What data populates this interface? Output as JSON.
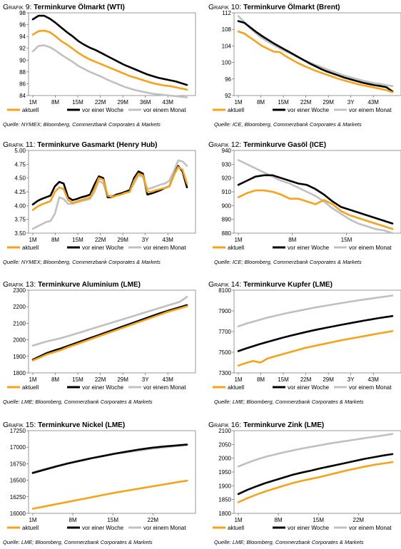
{
  "legend": [
    "aktuell",
    "vor einer Woche",
    "vor einem Monat"
  ],
  "colors": {
    "aktuell": "#F7A21B",
    "woche": "#000000",
    "monat": "#C0C0C0"
  },
  "panels": [
    {
      "label": "Grafik 9:",
      "title": "Terminkurve Ölmarkt (WTI)",
      "source": "Quelle: NYMEX; Bloomberg, Commerzbank Corporates & Markets",
      "chart_data": {
        "type": "line",
        "ylim": [
          84,
          98
        ],
        "yticks": [
          "84",
          "86",
          "88",
          "90",
          "92",
          "94",
          "96",
          "98"
        ],
        "xticks": [
          "1M",
          "8M",
          "15M",
          "22M",
          "29M",
          "36M",
          "43M"
        ],
        "series": [
          {
            "name": "aktuell",
            "values": [
              94.3,
              94.9,
              95.0,
              94.7,
              94.0,
              93.2,
              92.6,
              91.9,
              91.2,
              90.6,
              90.1,
              89.7,
              89.3,
              88.9,
              88.5,
              88.1,
              87.7,
              87.3,
              87.0,
              86.7,
              86.4,
              86.1,
              85.9,
              85.7,
              85.6,
              85.4,
              85.2,
              85.0
            ]
          },
          {
            "name": "vor einer Woche",
            "values": [
              96.9,
              97.5,
              97.5,
              97.0,
              96.3,
              95.5,
              94.7,
              94.0,
              93.2,
              92.6,
              92.1,
              91.7,
              91.2,
              90.7,
              90.2,
              89.7,
              89.2,
              88.8,
              88.4,
              88.0,
              87.6,
              87.3,
              87.0,
              86.8,
              86.6,
              86.4,
              86.1,
              85.8
            ]
          },
          {
            "name": "vor einem Monat",
            "values": [
              91.5,
              92.4,
              92.5,
              92.2,
              91.6,
              90.9,
              90.3,
              89.7,
              89.0,
              88.5,
              88.0,
              87.6,
              87.2,
              86.7,
              86.3,
              85.9,
              85.5,
              85.2,
              84.9,
              84.7,
              84.5,
              84.3,
              84.2,
              84.1,
              84.0,
              83.9,
              83.8,
              83.7
            ]
          }
        ]
      }
    },
    {
      "label": "Grafik 10:",
      "title": "Terminkurve Ölmarkt (Brent)",
      "source": "Quelle: ICE, Bloomberg, Commerzbank Corporates & Markets",
      "chart_data": {
        "type": "line",
        "ylim": [
          92,
          112
        ],
        "yticks": [
          "92",
          "96",
          "100",
          "104",
          "108",
          "112"
        ],
        "xticks": [
          "1M",
          "8M",
          "15M",
          "22M",
          "29M",
          "3Y",
          "43M"
        ],
        "series": [
          {
            "name": "aktuell",
            "values": [
              107.5,
              107.0,
              106.0,
              105.0,
              104.0,
              103.3,
              102.6,
              102.5,
              101.5,
              100.7,
              99.9,
              99.2,
              98.6,
              98.0,
              97.5,
              97.0,
              96.5,
              96.0,
              95.6,
              95.2,
              94.8,
              94.5,
              94.2,
              93.9,
              93.6,
              93.3,
              92.8
            ]
          },
          {
            "name": "vor einer Woche",
            "values": [
              110.0,
              109.6,
              108.5,
              107.4,
              106.4,
              105.5,
              104.6,
              103.8,
              103.0,
              102.2,
              101.4,
              100.6,
              99.8,
              99.1,
              98.4,
              97.8,
              97.3,
              96.8,
              96.3,
              95.9,
              95.5,
              95.1,
              94.8,
              94.5,
              94.3,
              94.0,
              93.0
            ]
          },
          {
            "name": "vor einem Monat",
            "values": [
              111.2,
              109.8,
              108.3,
              107.0,
              105.9,
              105.0,
              104.2,
              103.4,
              102.7,
              102.0,
              101.3,
              100.6,
              100.0,
              99.4,
              98.9,
              98.3,
              97.8,
              97.3,
              96.8,
              96.4,
              96.0,
              95.6,
              95.3,
              95.0,
              94.8,
              94.5,
              94.3
            ]
          }
        ]
      }
    },
    {
      "label": "Grafik 11:",
      "title": "Terminkurve Gasmarkt (Henry Hub)",
      "source": "Quelle: NYMEX; Bloomberg, Commerzbank Corporates & Markets",
      "chart_data": {
        "type": "line",
        "ylim": [
          3.5,
          5.0
        ],
        "yticks": [
          "3.50",
          "3.75",
          "4.00",
          "4.25",
          "4.50",
          "4.75",
          "5.00"
        ],
        "xticks": [
          "1M",
          "8M",
          "15M",
          "22M",
          "29M",
          "3Y",
          "43M"
        ],
        "series": [
          {
            "name": "aktuell",
            "values": [
              3.92,
              3.98,
              4.02,
              4.05,
              4.08,
              4.25,
              4.33,
              4.3,
              4.1,
              4.05,
              4.07,
              4.1,
              4.12,
              4.15,
              4.3,
              4.5,
              4.47,
              4.18,
              4.15,
              4.18,
              4.2,
              4.23,
              4.25,
              4.45,
              4.58,
              4.55,
              4.25,
              4.25,
              4.28,
              4.3,
              4.32,
              4.35,
              4.55,
              4.7,
              4.65,
              4.4
            ]
          },
          {
            "name": "vor einer Woche",
            "values": [
              4.02,
              4.08,
              4.12,
              4.15,
              4.18,
              4.35,
              4.43,
              4.4,
              4.15,
              4.1,
              4.12,
              4.15,
              4.17,
              4.2,
              4.38,
              4.53,
              4.5,
              4.15,
              4.15,
              4.2,
              4.22,
              4.25,
              4.28,
              4.5,
              4.62,
              4.58,
              4.2,
              4.22,
              4.25,
              4.28,
              4.32,
              4.35,
              4.55,
              4.72,
              4.62,
              4.33
            ]
          },
          {
            "name": "vor einem Monat",
            "values": [
              3.58,
              3.62,
              3.66,
              3.7,
              3.72,
              3.85,
              4.15,
              4.12,
              4.03,
              4.03,
              4.06,
              4.08,
              4.1,
              4.12,
              4.25,
              4.45,
              4.4,
              4.18,
              4.18,
              4.2,
              4.22,
              4.25,
              4.28,
              4.4,
              4.55,
              4.52,
              4.3,
              4.32,
              4.35,
              4.38,
              4.4,
              4.45,
              4.62,
              4.82,
              4.8,
              4.72
            ]
          }
        ]
      }
    },
    {
      "label": "Grafik 12:",
      "title": "Terminkurve Gasöl (ICE)",
      "source": "Quelle: ICE; Bloomberg, Commerzbank Corporates & Markets",
      "chart_data": {
        "type": "line",
        "ylim": [
          880,
          940
        ],
        "yticks": [
          "880",
          "890",
          "900",
          "910",
          "920",
          "930",
          "940"
        ],
        "xticks": [
          "1M",
          "8M",
          "15M"
        ],
        "series": [
          {
            "name": "aktuell",
            "values": [
              906,
              909,
              911,
              911,
              910,
              908,
              905,
              905,
              903,
              901,
              904,
              901,
              896,
              893,
              891,
              889,
              887,
              885,
              883
            ]
          },
          {
            "name": "vor einer Woche",
            "values": [
              915,
              918,
              921,
              922,
              922,
              920,
              918,
              916,
              915,
              912,
              908,
              903,
              899,
              897,
              895,
              893,
              891,
              889,
              887
            ]
          },
          {
            "name": "vor einem Monat",
            "values": [
              933,
              930,
              927,
              924,
              921,
              918,
              916,
              913,
              910,
              907,
              903,
              898,
              894,
              890,
              887,
              885,
              883,
              882,
              880
            ]
          }
        ]
      }
    },
    {
      "label": "Grafik 13:",
      "title": "Terminkurve Aluminium (LME)",
      "source": "Quelle: LME; Bloomberg, Commerzbank Corporates & Markets",
      "chart_data": {
        "type": "line",
        "ylim": [
          1800,
          2300
        ],
        "yticks": [
          "1800",
          "1900",
          "2000",
          "2100",
          "2200",
          "2300"
        ],
        "xticks": [
          "1M",
          "8M",
          "15M",
          "22M",
          "29M",
          "3Y",
          "43M"
        ],
        "series": [
          {
            "name": "aktuell",
            "values": [
              1875,
              1893,
              1912,
              1925,
              1938,
              1955,
              1970,
              1985,
              2000,
              2015,
              2030,
              2045,
              2060,
              2075,
              2090,
              2105,
              2120,
              2135,
              2150,
              2165,
              2178,
              2190,
              2203
            ]
          },
          {
            "name": "vor einer Woche",
            "values": [
              1880,
              1900,
              1920,
              1935,
              1948,
              1963,
              1978,
              1993,
              2008,
              2023,
              2038,
              2053,
              2068,
              2083,
              2098,
              2113,
              2128,
              2143,
              2158,
              2172,
              2185,
              2197,
              2210
            ]
          },
          {
            "name": "vor einem Monat",
            "values": [
              1965,
              1978,
              1990,
              2000,
              2010,
              2022,
              2035,
              2048,
              2061,
              2074,
              2087,
              2100,
              2113,
              2126,
              2139,
              2152,
              2165,
              2178,
              2191,
              2204,
              2217,
              2230,
              2260
            ]
          }
        ]
      }
    },
    {
      "label": "Grafik 14:",
      "title": "Terminkurve Kupfer (LME)",
      "source": "Quelle: LME; Bloomberg, Commerzbank Corporates & Markets",
      "chart_data": {
        "type": "line",
        "ylim": [
          7300,
          8100
        ],
        "yticks": [
          "7300",
          "7500",
          "7700",
          "7900",
          "8100"
        ],
        "xticks": [
          "1M",
          "8M",
          "15M",
          "22M",
          "29M",
          "3Y",
          "43M"
        ],
        "series": [
          {
            "name": "aktuell",
            "values": [
              7370,
              7395,
              7415,
              7400,
              7440,
              7460,
              7480,
              7500,
              7520,
              7540,
              7555,
              7570,
              7585,
              7600,
              7615,
              7628,
              7641,
              7654,
              7667,
              7680,
              7692,
              7704
            ]
          },
          {
            "name": "vor einer Woche",
            "values": [
              7510,
              7535,
              7558,
              7580,
              7600,
              7620,
              7640,
              7658,
              7675,
              7692,
              7708,
              7723,
              7737,
              7751,
              7765,
              7778,
              7791,
              7804,
              7816,
              7828,
              7839,
              7850
            ]
          },
          {
            "name": "vor einem Monat",
            "values": [
              7750,
              7775,
              7795,
              7815,
              7835,
              7852,
              7868,
              7884,
              7898,
              7912,
              7926,
              7939,
              7951,
              7963,
              7975,
              7986,
              7997,
              8008,
              8018,
              8028,
              8038,
              8048
            ]
          }
        ]
      }
    },
    {
      "label": "Grafik 15:",
      "title": "Terminkurve Nickel (LME)",
      "source": "Quelle: LME; Bloomberg, Commerzbank Corporates & Markets",
      "chart_data": {
        "type": "line",
        "ylim": [
          16000,
          17250
        ],
        "yticks": [
          "16000",
          "16250",
          "16500",
          "16750",
          "17000",
          "17250"
        ],
        "xticks": [
          "1M",
          "8M",
          "15M",
          "22M"
        ],
        "series": [
          {
            "name": "aktuell",
            "values": [
              16070,
              16105,
              16140,
              16175,
              16210,
              16245,
              16280,
              16315,
              16345,
              16375,
              16405,
              16435,
              16465,
              16495
            ]
          },
          {
            "name": "vor einer Woche",
            "values": [
              16610,
              16660,
              16710,
              16755,
              16795,
              16835,
              16870,
              16905,
              16935,
              16965,
              16990,
              17010,
              17025,
              17040
            ]
          },
          {
            "name": "vor einem Monat",
            "values": [
              16620,
              16670,
              16715,
              16760,
              16800,
              16835,
              16870,
              16900,
              16925,
              16950,
              16975,
              16995,
              17015,
              17030
            ]
          }
        ]
      }
    },
    {
      "label": "Grafik 16:",
      "title": "Terminkurve Zink (LME)",
      "source": "Quelle: LME; Bloomberg, Commerzbank Corporates & Markets",
      "chart_data": {
        "type": "line",
        "ylim": [
          1800,
          2100
        ],
        "yticks": [
          "1800",
          "1850",
          "1900",
          "1950",
          "2000",
          "2050",
          "2100"
        ],
        "xticks": [
          "1M",
          "8M",
          "15M",
          "22M"
        ],
        "series": [
          {
            "name": "aktuell",
            "values": [
              1840,
              1855,
              1868,
              1880,
              1890,
              1900,
              1910,
              1918,
              1925,
              1932,
              1940,
              1948,
              1956,
              1963,
              1970,
              1976,
              1981,
              1986
            ]
          },
          {
            "name": "vor einer Woche",
            "values": [
              1870,
              1885,
              1898,
              1910,
              1920,
              1930,
              1940,
              1948,
              1955,
              1963,
              1970,
              1977,
              1984,
              1991,
              1998,
              2004,
              2010,
              2015
            ]
          },
          {
            "name": "vor einem Monat",
            "values": [
              1970,
              1983,
              1995,
              2005,
              2013,
              2021,
              2028,
              2035,
              2041,
              2047,
              2053,
              2058,
              2063,
              2068,
              2073,
              2078,
              2083,
              2088
            ]
          }
        ]
      }
    }
  ]
}
